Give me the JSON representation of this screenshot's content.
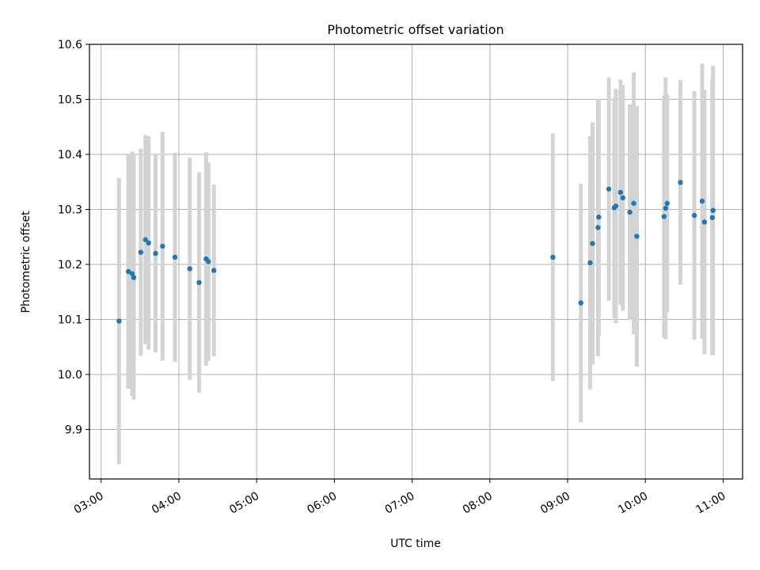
{
  "chart_data": {
    "type": "scatter",
    "title": "Photometric offset variation",
    "xlabel": "UTC time",
    "ylabel": "Photometric offset",
    "x_unit": "UTC hour of day",
    "xlim": [
      2.85,
      11.25
    ],
    "ylim": [
      9.81,
      10.6
    ],
    "grid": true,
    "colors": {
      "point": "#1f77b4",
      "errorbar": "#d3d3d3",
      "grid": "#b0b0b0"
    },
    "x_ticks": [
      {
        "value": 3,
        "label": "03:00"
      },
      {
        "value": 4,
        "label": "04:00"
      },
      {
        "value": 5,
        "label": "05:00"
      },
      {
        "value": 6,
        "label": "06:00"
      },
      {
        "value": 7,
        "label": "07:00"
      },
      {
        "value": 8,
        "label": "08:00"
      },
      {
        "value": 9,
        "label": "09:00"
      },
      {
        "value": 10,
        "label": "10:00"
      },
      {
        "value": 11,
        "label": "11:00"
      }
    ],
    "y_ticks": [
      {
        "value": 9.9,
        "label": "9.9"
      },
      {
        "value": 10.0,
        "label": "10.0"
      },
      {
        "value": 10.1,
        "label": "10.1"
      },
      {
        "value": 10.2,
        "label": "10.2"
      },
      {
        "value": 10.3,
        "label": "10.3"
      },
      {
        "value": 10.4,
        "label": "10.4"
      },
      {
        "value": 10.5,
        "label": "10.5"
      },
      {
        "value": 10.6,
        "label": "10.6"
      }
    ],
    "points": [
      {
        "x": 3.23,
        "y": 10.097,
        "err": 0.26
      },
      {
        "x": 3.35,
        "y": 10.187,
        "err": 0.213
      },
      {
        "x": 3.4,
        "y": 10.183,
        "err": 0.222
      },
      {
        "x": 3.42,
        "y": 10.176,
        "err": 0.222
      },
      {
        "x": 3.51,
        "y": 10.222,
        "err": 0.188
      },
      {
        "x": 3.57,
        "y": 10.245,
        "err": 0.19
      },
      {
        "x": 3.61,
        "y": 10.239,
        "err": 0.194
      },
      {
        "x": 3.7,
        "y": 10.22,
        "err": 0.18
      },
      {
        "x": 3.79,
        "y": 10.233,
        "err": 0.208
      },
      {
        "x": 3.95,
        "y": 10.213,
        "err": 0.19
      },
      {
        "x": 4.14,
        "y": 10.192,
        "err": 0.202
      },
      {
        "x": 4.26,
        "y": 10.167,
        "err": 0.2
      },
      {
        "x": 4.35,
        "y": 10.21,
        "err": 0.194
      },
      {
        "x": 4.38,
        "y": 10.205,
        "err": 0.18
      },
      {
        "x": 4.45,
        "y": 10.189,
        "err": 0.156
      },
      {
        "x": 8.81,
        "y": 10.213,
        "err": 0.225
      },
      {
        "x": 9.17,
        "y": 10.13,
        "err": 0.217
      },
      {
        "x": 9.29,
        "y": 10.203,
        "err": 0.23
      },
      {
        "x": 9.32,
        "y": 10.238,
        "err": 0.22
      },
      {
        "x": 9.39,
        "y": 10.267,
        "err": 0.234
      },
      {
        "x": 9.4,
        "y": 10.286,
        "err": 0.215
      },
      {
        "x": 9.53,
        "y": 10.337,
        "err": 0.203
      },
      {
        "x": 9.6,
        "y": 10.303,
        "err": 0.2
      },
      {
        "x": 9.62,
        "y": 10.306,
        "err": 0.213
      },
      {
        "x": 9.68,
        "y": 10.331,
        "err": 0.205
      },
      {
        "x": 9.71,
        "y": 10.321,
        "err": 0.205
      },
      {
        "x": 9.8,
        "y": 10.295,
        "err": 0.196
      },
      {
        "x": 9.85,
        "y": 10.311,
        "err": 0.238
      },
      {
        "x": 9.89,
        "y": 10.251,
        "err": 0.237
      },
      {
        "x": 10.24,
        "y": 10.287,
        "err": 0.22
      },
      {
        "x": 10.26,
        "y": 10.302,
        "err": 0.238
      },
      {
        "x": 10.28,
        "y": 10.311,
        "err": 0.198
      },
      {
        "x": 10.45,
        "y": 10.349,
        "err": 0.186
      },
      {
        "x": 10.63,
        "y": 10.289,
        "err": 0.226
      },
      {
        "x": 10.73,
        "y": 10.315,
        "err": 0.25
      },
      {
        "x": 10.76,
        "y": 10.277,
        "err": 0.24
      },
      {
        "x": 10.86,
        "y": 10.285,
        "err": 0.25
      },
      {
        "x": 10.87,
        "y": 10.298,
        "err": 0.263
      }
    ]
  }
}
